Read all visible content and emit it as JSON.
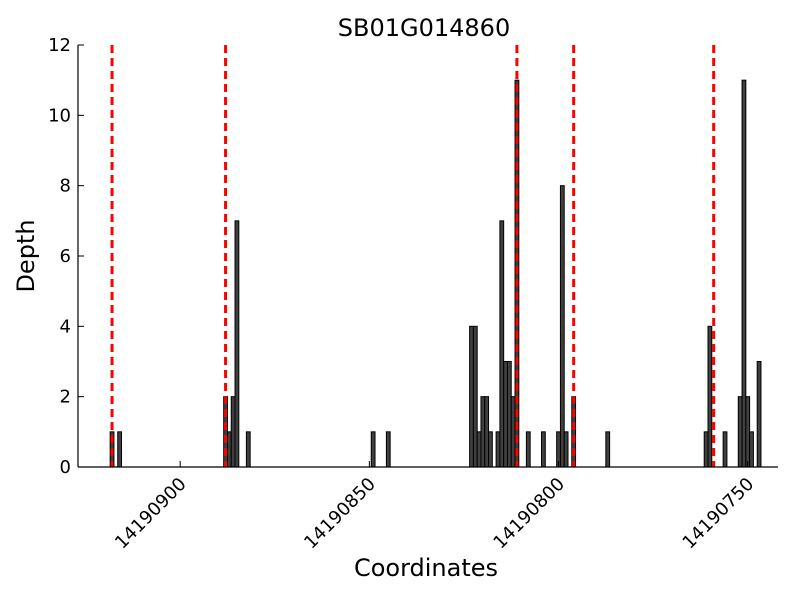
{
  "chart_data": {
    "type": "bar",
    "title": "SB01G014860",
    "xlabel": "Coordinates",
    "ylabel": "Depth",
    "xlim": [
      14190927,
      14190742
    ],
    "x_reversed": true,
    "ylim": [
      0,
      12
    ],
    "yticks": [
      0,
      2,
      4,
      6,
      8,
      10,
      12
    ],
    "xticks": [
      14190900,
      14190850,
      14190800,
      14190750
    ],
    "grid": false,
    "bars": [
      {
        "x": 14190918,
        "y": 1
      },
      {
        "x": 14190916,
        "y": 1
      },
      {
        "x": 14190888,
        "y": 2
      },
      {
        "x": 14190887,
        "y": 1
      },
      {
        "x": 14190886,
        "y": 2
      },
      {
        "x": 14190885,
        "y": 7
      },
      {
        "x": 14190882,
        "y": 1
      },
      {
        "x": 14190849,
        "y": 1
      },
      {
        "x": 14190845,
        "y": 1
      },
      {
        "x": 14190823,
        "y": 4
      },
      {
        "x": 14190822,
        "y": 4
      },
      {
        "x": 14190821,
        "y": 1
      },
      {
        "x": 14190820,
        "y": 2
      },
      {
        "x": 14190819,
        "y": 2
      },
      {
        "x": 14190818,
        "y": 1
      },
      {
        "x": 14190816,
        "y": 1
      },
      {
        "x": 14190815,
        "y": 7
      },
      {
        "x": 14190814,
        "y": 3
      },
      {
        "x": 14190813,
        "y": 3
      },
      {
        "x": 14190812,
        "y": 2
      },
      {
        "x": 14190811,
        "y": 11
      },
      {
        "x": 14190808,
        "y": 1
      },
      {
        "x": 14190804,
        "y": 1
      },
      {
        "x": 14190800,
        "y": 1
      },
      {
        "x": 14190799,
        "y": 8
      },
      {
        "x": 14190798,
        "y": 1
      },
      {
        "x": 14190796,
        "y": 2
      },
      {
        "x": 14190787,
        "y": 1
      },
      {
        "x": 14190761,
        "y": 1
      },
      {
        "x": 14190760,
        "y": 4
      },
      {
        "x": 14190756,
        "y": 1
      },
      {
        "x": 14190752,
        "y": 2
      },
      {
        "x": 14190751,
        "y": 11
      },
      {
        "x": 14190750,
        "y": 2
      },
      {
        "x": 14190749,
        "y": 1
      },
      {
        "x": 14190747,
        "y": 3
      }
    ],
    "reference_lines": {
      "color": "#ff0000",
      "style": "dashed",
      "x": [
        14190918,
        14190888,
        14190811,
        14190796,
        14190759
      ]
    },
    "bar_color": "#404040"
  }
}
